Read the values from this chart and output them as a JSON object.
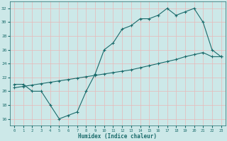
{
  "line1_x": [
    0,
    1,
    2,
    3,
    4,
    5,
    6,
    7,
    8,
    9,
    10,
    11,
    12,
    13,
    14,
    15,
    16,
    17,
    18,
    19,
    20,
    21,
    22,
    23
  ],
  "line1_y": [
    21,
    21,
    20,
    20,
    18,
    16,
    16.5,
    17,
    20,
    22.5,
    26,
    27,
    29,
    29.5,
    30.5,
    30.5,
    31,
    32,
    31,
    31.5,
    32,
    30,
    26,
    25
  ],
  "line2_x": [
    0,
    1,
    2,
    3,
    4,
    5,
    6,
    7,
    8,
    9,
    10,
    11,
    12,
    13,
    14,
    15,
    16,
    17,
    18,
    19,
    20,
    21,
    22,
    23
  ],
  "line2_y": [
    20.5,
    20.7,
    20.9,
    21.1,
    21.3,
    21.5,
    21.7,
    21.9,
    22.1,
    22.3,
    22.5,
    22.7,
    22.9,
    23.1,
    23.4,
    23.7,
    24.0,
    24.3,
    24.6,
    25.0,
    25.3,
    25.6,
    25.0,
    25.0
  ],
  "line_color": "#1a6b6b",
  "bg_color": "#cce8e8",
  "grid_color": "#e8b8b8",
  "xlabel": "Humidex (Indice chaleur)",
  "ylim": [
    15,
    33
  ],
  "xlim": [
    -0.5,
    23.5
  ],
  "yticks": [
    16,
    18,
    20,
    22,
    24,
    26,
    28,
    30,
    32
  ],
  "xticks": [
    0,
    1,
    2,
    3,
    4,
    5,
    6,
    7,
    8,
    9,
    10,
    11,
    12,
    13,
    14,
    15,
    16,
    17,
    18,
    19,
    20,
    21,
    22,
    23
  ]
}
